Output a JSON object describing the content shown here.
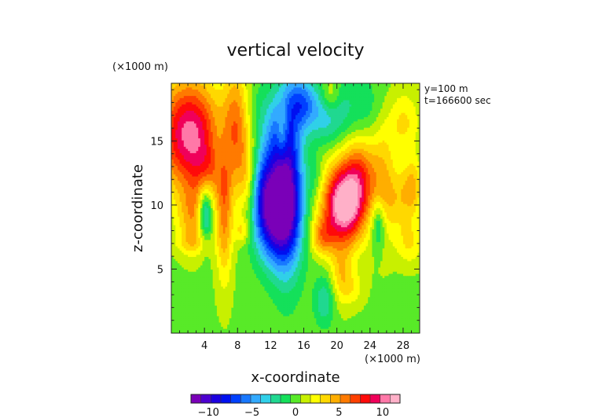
{
  "chart_data": {
    "type": "heatmap",
    "title": "vertical velocity",
    "xlabel": "x-coordinate",
    "ylabel": "z-coordinate",
    "x_unit_label": "(×1000 m)",
    "y_unit_label": "(×1000 m)",
    "annotations": [
      "y=100 m",
      "t=166600 sec"
    ],
    "xlim": [
      0,
      30
    ],
    "ylim": [
      0,
      19.5
    ],
    "x_ticks": [
      4,
      8,
      12,
      16,
      20,
      24,
      28
    ],
    "y_ticks": [
      5,
      10,
      15
    ],
    "colorbar": {
      "min": -12,
      "max": 12,
      "ticks": [
        -10,
        -5,
        0,
        5,
        10
      ],
      "colors": [
        "#7a00b8",
        "#4d00d0",
        "#1c00e0",
        "#0010f0",
        "#0040ff",
        "#1878ff",
        "#33aaff",
        "#30d0e8",
        "#20d890",
        "#14e05a",
        "#58ea28",
        "#c8f000",
        "#ffff00",
        "#ffd800",
        "#ffae00",
        "#ff7a00",
        "#ff4000",
        "#ff0a0a",
        "#f0005a",
        "#ff78a8",
        "#ffb0c8"
      ]
    },
    "field": {
      "background": 0.3,
      "features": [
        {
          "x": 2.2,
          "z": 15.5,
          "sx": 2.6,
          "sz": 3.0,
          "amp": 10
        },
        {
          "x": 4.5,
          "z": 12.5,
          "sx": 1.2,
          "sz": 1.6,
          "amp": 3
        },
        {
          "x": 2.6,
          "z": 9.0,
          "sx": 1.3,
          "sz": 1.8,
          "amp": 4
        },
        {
          "x": 2.8,
          "z": 7.0,
          "sx": 1.6,
          "sz": 0.6,
          "amp": 1.8
        },
        {
          "x": 6.4,
          "z": 9.5,
          "sx": 0.7,
          "sz": 3.8,
          "amp": 5
        },
        {
          "x": 6.2,
          "z": 14.0,
          "sx": 1.0,
          "sz": 2.0,
          "amp": -1.5
        },
        {
          "x": 7.8,
          "z": 16.0,
          "sx": 1.0,
          "sz": 3.5,
          "amp": 5
        },
        {
          "x": 9.2,
          "z": 12.0,
          "sx": 0.9,
          "sz": 2.5,
          "amp": 3
        },
        {
          "x": 4.1,
          "z": 9.5,
          "sx": 0.6,
          "sz": 1.6,
          "amp": -6
        },
        {
          "x": 8.5,
          "z": 8.0,
          "sx": 0.6,
          "sz": 0.7,
          "amp": 2.5
        },
        {
          "x": 12.5,
          "z": 9.5,
          "sx": 1.8,
          "sz": 2.6,
          "amp": -11
        },
        {
          "x": 14.0,
          "z": 12.0,
          "sx": 1.4,
          "sz": 5.0,
          "amp": -8
        },
        {
          "x": 11.0,
          "z": 12.0,
          "sx": 0.9,
          "sz": 2.5,
          "amp": -3
        },
        {
          "x": 13.0,
          "z": 15.5,
          "sx": 1.2,
          "sz": 2.0,
          "amp": -3
        },
        {
          "x": 15.8,
          "z": 18.0,
          "sx": 1.2,
          "sz": 1.4,
          "amp": -5
        },
        {
          "x": 18.5,
          "z": 17.0,
          "sx": 1.5,
          "sz": 1.5,
          "amp": -3
        },
        {
          "x": 22.0,
          "z": 17.5,
          "sx": 3.0,
          "sz": 2.0,
          "amp": -2
        },
        {
          "x": 10.8,
          "z": 17.5,
          "sx": 1.0,
          "sz": 1.6,
          "amp": -1.2
        },
        {
          "x": 17.5,
          "z": 12.0,
          "sx": 0.8,
          "sz": 1.2,
          "amp": -1.5
        },
        {
          "x": 20.8,
          "z": 10.0,
          "sx": 1.8,
          "sz": 2.2,
          "amp": 12
        },
        {
          "x": 22.8,
          "z": 12.5,
          "sx": 1.4,
          "sz": 2.2,
          "amp": 5
        },
        {
          "x": 18.2,
          "z": 7.5,
          "sx": 1.0,
          "sz": 1.0,
          "amp": 4
        },
        {
          "x": 19.2,
          "z": 18.5,
          "sx": 0.8,
          "sz": 1.0,
          "amp": 3
        },
        {
          "x": 13.4,
          "z": 15.5,
          "sx": 0.5,
          "sz": 1.5,
          "amp": 4
        },
        {
          "x": 25.5,
          "z": 12.0,
          "sx": 1.0,
          "sz": 3.5,
          "amp": 3
        },
        {
          "x": 28.0,
          "z": 16.5,
          "sx": 1.4,
          "sz": 1.8,
          "amp": 3
        },
        {
          "x": 27.6,
          "z": 10.5,
          "sx": 1.4,
          "sz": 1.8,
          "amp": 3
        },
        {
          "x": 29.2,
          "z": 11.5,
          "sx": 0.8,
          "sz": 1.5,
          "amp": 3
        },
        {
          "x": 25.0,
          "z": 8.5,
          "sx": 0.6,
          "sz": 1.4,
          "amp": -4
        },
        {
          "x": 28.8,
          "z": 7.0,
          "sx": 1.2,
          "sz": 1.2,
          "amp": 2.5
        },
        {
          "x": 20.5,
          "z": 4.5,
          "sx": 0.9,
          "sz": 1.6,
          "amp": 3
        },
        {
          "x": 18.5,
          "z": 2.5,
          "sx": 0.9,
          "sz": 1.4,
          "amp": -3
        },
        {
          "x": 22.0,
          "z": 3.5,
          "sx": 1.0,
          "sz": 1.0,
          "amp": 1.8
        }
      ]
    }
  }
}
